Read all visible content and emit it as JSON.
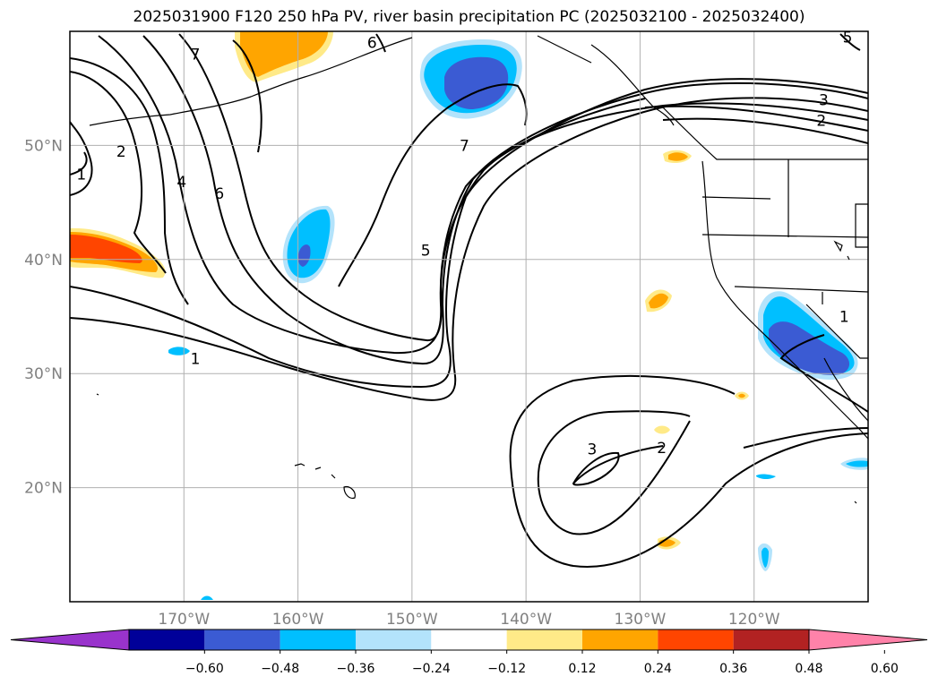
{
  "title": "2025031900 F120 250 hPa PV, river basin precipitation PC (2025032100 - 2025032400)",
  "map": {
    "lon_range": [
      -180,
      -110
    ],
    "lat_range": [
      10,
      60
    ],
    "lat_ticks": [
      {
        "value": 50,
        "label": "50°N"
      },
      {
        "value": 40,
        "label": "40°N"
      },
      {
        "value": 30,
        "label": "30°N"
      },
      {
        "value": 20,
        "label": "20°N"
      }
    ],
    "lon_ticks": [
      {
        "value": -170,
        "label": "170°W"
      },
      {
        "value": -160,
        "label": "160°W"
      },
      {
        "value": -150,
        "label": "150°W"
      },
      {
        "value": -140,
        "label": "140°W"
      },
      {
        "value": -130,
        "label": "130°W"
      },
      {
        "value": -120,
        "label": "120°W"
      }
    ],
    "grid": true,
    "contour_labels": [
      {
        "text": "7",
        "lon": -169,
        "lat": 58
      },
      {
        "text": "6",
        "lon": -153.5,
        "lat": 59
      },
      {
        "text": "2",
        "lon": -175.5,
        "lat": 49.5
      },
      {
        "text": "1",
        "lon": -179,
        "lat": 47.5
      },
      {
        "text": "4",
        "lon": -170.2,
        "lat": 46.8
      },
      {
        "text": "6",
        "lon": -166.9,
        "lat": 45.8
      },
      {
        "text": "7",
        "lon": -145.4,
        "lat": 50
      },
      {
        "text": "5",
        "lon": -148.8,
        "lat": 40.8
      },
      {
        "text": "1",
        "lon": -169,
        "lat": 31.3
      },
      {
        "text": "3",
        "lon": -113.9,
        "lat": 54
      },
      {
        "text": "2",
        "lon": -114.1,
        "lat": 52.2
      },
      {
        "text": "5",
        "lon": -111.8,
        "lat": 59.5
      },
      {
        "text": "1",
        "lon": -112.1,
        "lat": 35
      },
      {
        "text": "3",
        "lon": -134.2,
        "lat": 23.4
      },
      {
        "text": "2",
        "lon": -128.1,
        "lat": 23.5
      }
    ]
  },
  "colorbar": {
    "colors": [
      "#9933cc",
      "#000099",
      "#3b5bd3",
      "#00bfff",
      "#b3e3fb",
      "#ffffff",
      "#ffea88",
      "#ffa500",
      "#ff4500",
      "#b22222",
      "#ff82a9"
    ],
    "ticks": [
      "−0.60",
      "−0.48",
      "−0.36",
      "−0.24",
      "−0.12",
      "0.12",
      "0.24",
      "0.36",
      "0.48",
      "0.60"
    ]
  }
}
